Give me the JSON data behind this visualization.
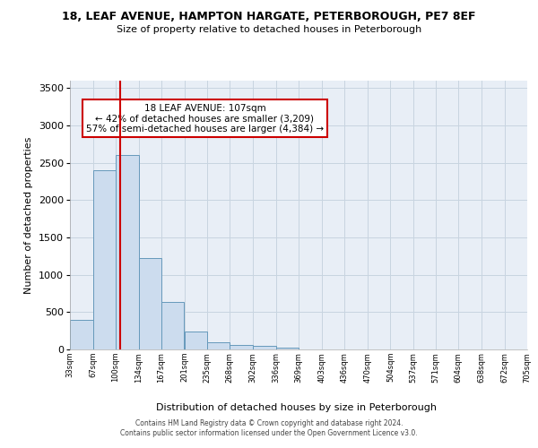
{
  "title1": "18, LEAF AVENUE, HAMPTON HARGATE, PETERBOROUGH, PE7 8EF",
  "title2": "Size of property relative to detached houses in Peterborough",
  "xlabel": "Distribution of detached houses by size in Peterborough",
  "ylabel": "Number of detached properties",
  "footer1": "Contains HM Land Registry data © Crown copyright and database right 2024.",
  "footer2": "Contains public sector information licensed under the Open Government Licence v3.0.",
  "bin_edges": [
    33,
    67,
    100,
    134,
    167,
    201,
    235,
    268,
    302,
    336,
    369,
    403,
    436,
    470,
    504,
    537,
    571,
    604,
    638,
    672,
    705
  ],
  "bar_heights": [
    400,
    2400,
    2600,
    1230,
    640,
    240,
    100,
    60,
    50,
    30,
    0,
    0,
    0,
    0,
    0,
    0,
    0,
    0,
    0,
    0
  ],
  "bar_color": "#ccdcee",
  "bar_edge_color": "#6699bb",
  "grid_color": "#c8d4e0",
  "bg_color": "#e8eef6",
  "vline_x": 107,
  "vline_color": "#cc0000",
  "annotation_text": "18 LEAF AVENUE: 107sqm\n← 42% of detached houses are smaller (3,209)\n57% of semi-detached houses are larger (4,384) →",
  "annotation_box_color": "#ffffff",
  "annotation_box_edge": "#cc0000",
  "ylim": [
    0,
    3600
  ],
  "yticks": [
    0,
    500,
    1000,
    1500,
    2000,
    2500,
    3000,
    3500
  ]
}
